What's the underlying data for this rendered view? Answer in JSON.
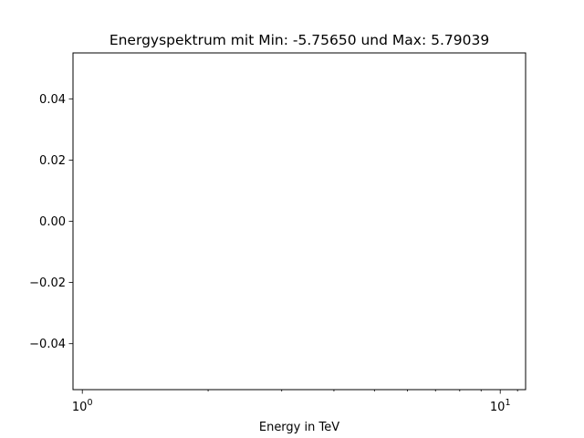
{
  "chart_data": {
    "type": "line",
    "title": "Energyspektrum mit Min: -5.75650 und Max: 5.79039",
    "xlabel": "Energy in TeV",
    "ylabel": "",
    "x_scale": "log",
    "xlim": [
      0.95,
      11.5
    ],
    "ylim": [
      -0.055,
      0.055
    ],
    "x_major_ticks": [
      {
        "value": 1,
        "base": "10",
        "exp": "0"
      },
      {
        "value": 10,
        "base": "10",
        "exp": "1"
      }
    ],
    "x_minor_ticks": [
      2,
      3,
      4,
      5,
      6,
      7,
      8,
      9,
      11
    ],
    "y_ticks": [
      {
        "value": 0.04,
        "label": "0.04"
      },
      {
        "value": 0.02,
        "label": "0.02"
      },
      {
        "value": 0.0,
        "label": "0.00"
      },
      {
        "value": -0.02,
        "label": "−0.02"
      },
      {
        "value": -0.04,
        "label": "−0.04"
      }
    ],
    "series": [],
    "grid": false,
    "legend": "none"
  }
}
